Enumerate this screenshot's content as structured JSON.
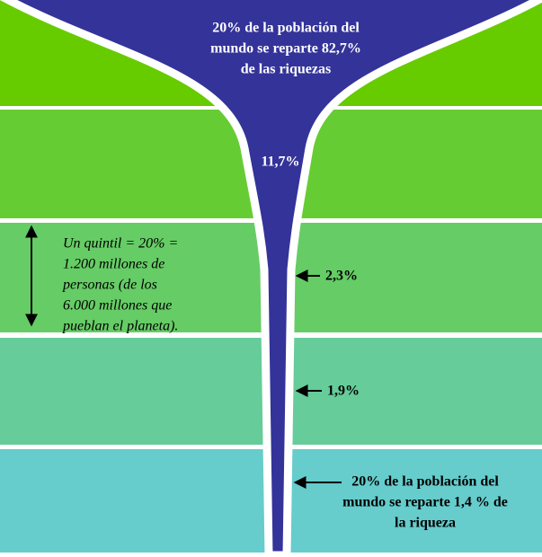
{
  "top_label": [
    "20% de la población del",
    "mundo se reparte 82,7%",
    "de las riquezas"
  ],
  "mid_label": "11,7%",
  "quintile_note": [
    "Un quintil = 20% =",
    "1.200 millones de",
    "personas (de los",
    "6.000 millones que",
    "pueblan el planeta)."
  ],
  "side_labels": [
    "2,3%",
    "1,9%"
  ],
  "bottom_label": [
    "20% de la población del",
    "mundo se reparte 1,4 % de",
    "la riqueza"
  ]
}
